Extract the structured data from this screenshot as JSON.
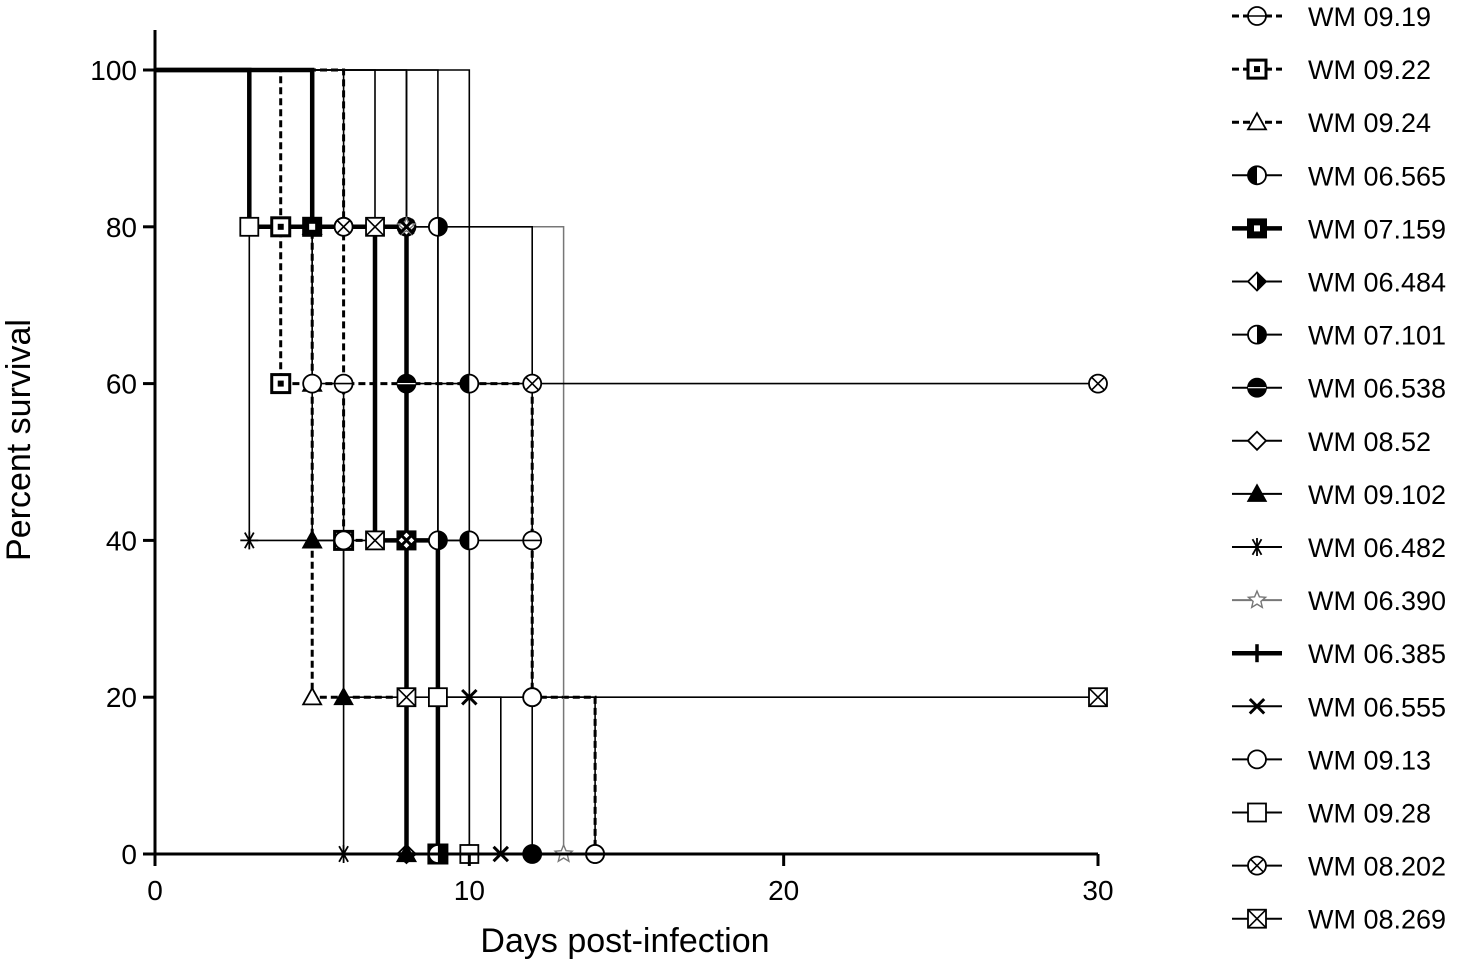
{
  "chart_data": {
    "type": "line",
    "subtype": "kaplan-meier survival",
    "xlabel": "Days post-infection",
    "ylabel": "Percent survival",
    "xlim": [
      0,
      30
    ],
    "ylim": [
      0,
      100
    ],
    "xticks": [
      "0",
      "10",
      "20",
      "30"
    ],
    "yticks": [
      "0",
      "20",
      "40",
      "60",
      "80",
      "100"
    ],
    "legend_position": "right",
    "grid": false,
    "series": [
      {
        "name": "WM 09.19",
        "marker": "circle-cross",
        "line": "dashed",
        "points": [
          [
            0,
            100
          ],
          [
            6,
            100
          ],
          [
            6,
            80
          ],
          [
            6,
            60
          ],
          [
            12,
            60
          ],
          [
            12,
            40
          ],
          [
            12,
            20
          ],
          [
            14,
            20
          ],
          [
            14,
            0
          ]
        ]
      },
      {
        "name": "WM 09.22",
        "marker": "square-dot",
        "line": "dashed",
        "points": [
          [
            0,
            100
          ],
          [
            4,
            100
          ],
          [
            4,
            80
          ],
          [
            4,
            60
          ],
          [
            6,
            60
          ],
          [
            6,
            40
          ],
          [
            9,
            40
          ],
          [
            9,
            0
          ]
        ]
      },
      {
        "name": "WM 09.24",
        "marker": "triangle-open",
        "line": "dashed",
        "points": [
          [
            0,
            100
          ],
          [
            5,
            100
          ],
          [
            5,
            80
          ],
          [
            5,
            60
          ],
          [
            5,
            40
          ],
          [
            5,
            20
          ],
          [
            8,
            20
          ],
          [
            8,
            0
          ]
        ]
      },
      {
        "name": "WM 06.565",
        "marker": "circle-half-left",
        "line": "solid",
        "points": [
          [
            0,
            100
          ],
          [
            10,
            100
          ],
          [
            10,
            60
          ],
          [
            10,
            40
          ],
          [
            10,
            0
          ]
        ]
      },
      {
        "name": "WM 07.159",
        "marker": "square-bold",
        "line": "solid-bold",
        "points": [
          [
            0,
            100
          ],
          [
            5,
            100
          ],
          [
            5,
            80
          ],
          [
            8,
            80
          ],
          [
            8,
            40
          ],
          [
            9,
            40
          ],
          [
            9,
            0
          ]
        ]
      },
      {
        "name": "WM 06.484",
        "marker": "diamond-half",
        "line": "solid",
        "points": [
          [
            0,
            100
          ],
          [
            8,
            100
          ],
          [
            8,
            80
          ],
          [
            8,
            40
          ],
          [
            8,
            0
          ]
        ]
      },
      {
        "name": "WM 07.101",
        "marker": "circle-half-right",
        "line": "solid",
        "points": [
          [
            0,
            100
          ],
          [
            9,
            100
          ],
          [
            9,
            80
          ],
          [
            9,
            40
          ],
          [
            9,
            0
          ]
        ]
      },
      {
        "name": "WM 06.538",
        "marker": "circle-filled-lower",
        "line": "solid",
        "points": [
          [
            0,
            100
          ],
          [
            8,
            100
          ],
          [
            8,
            80
          ],
          [
            8,
            60
          ],
          [
            12,
            60
          ],
          [
            12,
            0
          ]
        ]
      },
      {
        "name": "WM 08.52",
        "marker": "diamond-open",
        "line": "solid",
        "points": [
          [
            0,
            100
          ],
          [
            8,
            100
          ],
          [
            8,
            80
          ],
          [
            8,
            40
          ],
          [
            8,
            0
          ]
        ]
      },
      {
        "name": "WM 09.102",
        "marker": "triangle-filled",
        "line": "solid",
        "points": [
          [
            0,
            100
          ],
          [
            5,
            100
          ],
          [
            5,
            40
          ],
          [
            6,
            40
          ],
          [
            6,
            20
          ],
          [
            8,
            20
          ],
          [
            8,
            0
          ]
        ]
      },
      {
        "name": "WM 06.482",
        "marker": "asterisk",
        "line": "solid",
        "points": [
          [
            0,
            100
          ],
          [
            3,
            100
          ],
          [
            3,
            40
          ],
          [
            6,
            40
          ],
          [
            6,
            0
          ]
        ]
      },
      {
        "name": "WM 06.390",
        "marker": "star-open",
        "line": "solid-gray",
        "points": [
          [
            0,
            100
          ],
          [
            8,
            100
          ],
          [
            8,
            80
          ],
          [
            13,
            80
          ],
          [
            13,
            0
          ]
        ]
      },
      {
        "name": "WM 06.385",
        "marker": "plus",
        "line": "solid-bold",
        "points": [
          [
            0,
            100
          ],
          [
            3,
            100
          ],
          [
            3,
            80
          ],
          [
            7,
            80
          ],
          [
            7,
            40
          ],
          [
            8,
            40
          ],
          [
            8,
            0
          ]
        ]
      },
      {
        "name": "WM 06.555",
        "marker": "cross-x",
        "line": "solid",
        "points": [
          [
            0,
            100
          ],
          [
            8,
            100
          ],
          [
            8,
            80
          ],
          [
            8,
            40
          ],
          [
            9,
            40
          ],
          [
            10,
            40
          ],
          [
            10,
            20
          ],
          [
            11,
            20
          ],
          [
            11,
            0
          ]
        ]
      },
      {
        "name": "WM 09.13",
        "marker": "circle-open",
        "line": "solid",
        "points": [
          [
            0,
            100
          ],
          [
            5,
            100
          ],
          [
            5,
            60
          ],
          [
            6,
            60
          ],
          [
            6,
            40
          ],
          [
            12,
            40
          ],
          [
            12,
            20
          ],
          [
            14,
            20
          ],
          [
            14,
            0
          ]
        ]
      },
      {
        "name": "WM 09.28",
        "marker": "square-open",
        "line": "solid",
        "points": [
          [
            0,
            100
          ],
          [
            3,
            100
          ],
          [
            3,
            80
          ],
          [
            9,
            80
          ],
          [
            9,
            20
          ],
          [
            10,
            20
          ],
          [
            10,
            0
          ]
        ]
      },
      {
        "name": "WM 08.202",
        "marker": "circle-x",
        "line": "solid",
        "points": [
          [
            0,
            100
          ],
          [
            6,
            100
          ],
          [
            6,
            80
          ],
          [
            12,
            80
          ],
          [
            12,
            60
          ],
          [
            30,
            60
          ]
        ]
      },
      {
        "name": "WM 08.269",
        "marker": "square-x",
        "line": "solid",
        "points": [
          [
            0,
            100
          ],
          [
            7,
            100
          ],
          [
            7,
            80
          ],
          [
            7,
            40
          ],
          [
            8,
            40
          ],
          [
            8,
            20
          ],
          [
            30,
            20
          ]
        ]
      }
    ]
  }
}
